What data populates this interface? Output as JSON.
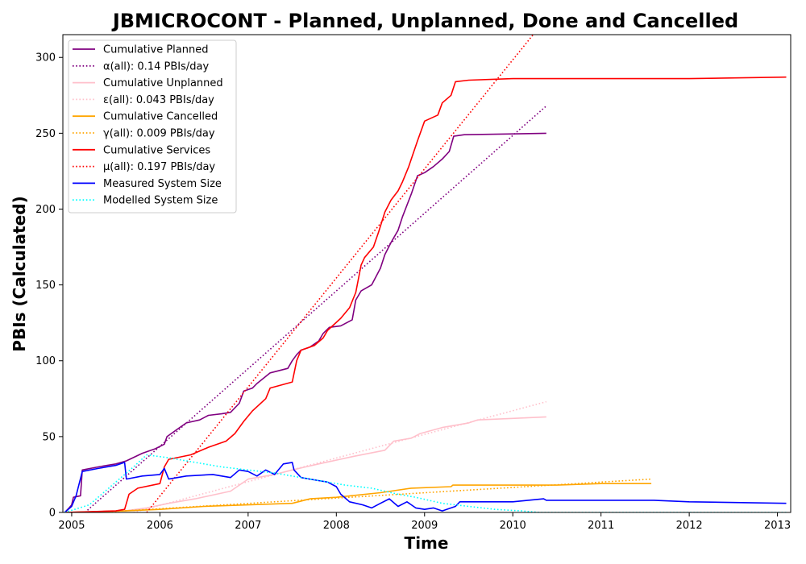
{
  "chart_data": {
    "type": "line",
    "title": "JBMICROCONT - Planned, Unplanned, Done  and Cancelled",
    "xlabel": "Time",
    "ylabel": "PBIs (Calculated)",
    "xlim": [
      2004.9,
      2013.15
    ],
    "ylim": [
      0,
      315
    ],
    "x_ticks": [
      2005,
      2006,
      2007,
      2008,
      2009,
      2010,
      2011,
      2012,
      2013
    ],
    "y_ticks": [
      0,
      50,
      100,
      150,
      200,
      250,
      300
    ],
    "grid": false,
    "legend_position": "top-left",
    "series": [
      {
        "name": "Cumulative Planned",
        "color": "#800080",
        "style": "solid",
        "points": [
          [
            2004.92,
            0
          ],
          [
            2004.97,
            3
          ],
          [
            2005.0,
            5
          ],
          [
            2005.02,
            10
          ],
          [
            2005.1,
            11
          ],
          [
            2005.12,
            28
          ],
          [
            2005.3,
            30
          ],
          [
            2005.5,
            32
          ],
          [
            2005.62,
            34
          ],
          [
            2005.8,
            39
          ],
          [
            2005.95,
            42
          ],
          [
            2006.05,
            45
          ],
          [
            2006.08,
            50
          ],
          [
            2006.2,
            55
          ],
          [
            2006.3,
            59
          ],
          [
            2006.45,
            61
          ],
          [
            2006.55,
            64
          ],
          [
            2006.7,
            65
          ],
          [
            2006.8,
            66
          ],
          [
            2006.9,
            72
          ],
          [
            2006.95,
            80
          ],
          [
            2007.05,
            82
          ],
          [
            2007.1,
            85
          ],
          [
            2007.25,
            92
          ],
          [
            2007.45,
            95
          ],
          [
            2007.5,
            100
          ],
          [
            2007.55,
            104
          ],
          [
            2007.6,
            107
          ],
          [
            2007.7,
            109
          ],
          [
            2007.8,
            113
          ],
          [
            2007.85,
            118
          ],
          [
            2007.92,
            122
          ],
          [
            2008.05,
            123
          ],
          [
            2008.18,
            127
          ],
          [
            2008.22,
            140
          ],
          [
            2008.28,
            146
          ],
          [
            2008.4,
            150
          ],
          [
            2008.5,
            161
          ],
          [
            2008.55,
            170
          ],
          [
            2008.62,
            178
          ],
          [
            2008.7,
            186
          ],
          [
            2008.75,
            195
          ],
          [
            2008.85,
            210
          ],
          [
            2008.92,
            222
          ],
          [
            2009.0,
            224
          ],
          [
            2009.1,
            228
          ],
          [
            2009.2,
            233
          ],
          [
            2009.28,
            238
          ],
          [
            2009.33,
            248
          ],
          [
            2009.45,
            249
          ],
          [
            2010.38,
            250
          ]
        ]
      },
      {
        "name": "α(all): 0.14 PBIs/day",
        "color": "#800080",
        "style": "dotted",
        "points": [
          [
            2005.15,
            0
          ],
          [
            2010.38,
            268
          ]
        ]
      },
      {
        "name": "Cumulative Unplanned",
        "color": "#ffc0cb",
        "style": "solid",
        "points": [
          [
            2004.92,
            0
          ],
          [
            2005.6,
            1
          ],
          [
            2005.85,
            3
          ],
          [
            2006.1,
            6
          ],
          [
            2006.4,
            9
          ],
          [
            2006.8,
            14
          ],
          [
            2007.0,
            22
          ],
          [
            2007.3,
            25
          ],
          [
            2007.5,
            28
          ],
          [
            2007.8,
            32
          ],
          [
            2008.2,
            37
          ],
          [
            2008.55,
            41
          ],
          [
            2008.65,
            47
          ],
          [
            2008.85,
            49
          ],
          [
            2008.95,
            52
          ],
          [
            2009.2,
            56
          ],
          [
            2009.5,
            59
          ],
          [
            2009.6,
            61
          ],
          [
            2010.0,
            62
          ],
          [
            2010.38,
            63
          ]
        ]
      },
      {
        "name": "ε(all): 0.043 PBIs/day",
        "color": "#ffc0cb",
        "style": "dotted",
        "points": [
          [
            2005.7,
            0
          ],
          [
            2010.38,
            73
          ]
        ]
      },
      {
        "name": "Cumulative Cancelled",
        "color": "#ffa500",
        "style": "solid",
        "points": [
          [
            2004.92,
            0
          ],
          [
            2005.6,
            1
          ],
          [
            2006.0,
            2
          ],
          [
            2006.5,
            4
          ],
          [
            2007.0,
            5
          ],
          [
            2007.5,
            6
          ],
          [
            2007.7,
            9
          ],
          [
            2008.0,
            10
          ],
          [
            2008.5,
            13
          ],
          [
            2008.85,
            16
          ],
          [
            2009.3,
            17
          ],
          [
            2009.32,
            18
          ],
          [
            2010.0,
            18
          ],
          [
            2010.5,
            18
          ],
          [
            2011.0,
            19
          ],
          [
            2011.57,
            19
          ]
        ]
      },
      {
        "name": "γ(all): 0.009 PBIs/day",
        "color": "#ffa500",
        "style": "dotted",
        "points": [
          [
            2005.3,
            0
          ],
          [
            2011.57,
            22
          ]
        ]
      },
      {
        "name": "Cumulative Services",
        "color": "#ff0000",
        "style": "solid",
        "points": [
          [
            2004.92,
            0
          ],
          [
            2005.5,
            1
          ],
          [
            2005.6,
            2
          ],
          [
            2005.65,
            12
          ],
          [
            2005.75,
            16
          ],
          [
            2006.0,
            19
          ],
          [
            2006.05,
            30
          ],
          [
            2006.1,
            35
          ],
          [
            2006.35,
            38
          ],
          [
            2006.55,
            43
          ],
          [
            2006.75,
            47
          ],
          [
            2006.85,
            52
          ],
          [
            2006.95,
            60
          ],
          [
            2007.05,
            67
          ],
          [
            2007.2,
            75
          ],
          [
            2007.25,
            82
          ],
          [
            2007.5,
            86
          ],
          [
            2007.55,
            100
          ],
          [
            2007.6,
            107
          ],
          [
            2007.75,
            110
          ],
          [
            2007.85,
            115
          ],
          [
            2007.9,
            120
          ],
          [
            2008.05,
            128
          ],
          [
            2008.15,
            135
          ],
          [
            2008.22,
            145
          ],
          [
            2008.28,
            163
          ],
          [
            2008.32,
            168
          ],
          [
            2008.42,
            175
          ],
          [
            2008.48,
            185
          ],
          [
            2008.55,
            198
          ],
          [
            2008.62,
            206
          ],
          [
            2008.7,
            212
          ],
          [
            2008.75,
            218
          ],
          [
            2008.82,
            228
          ],
          [
            2008.92,
            245
          ],
          [
            2009.0,
            258
          ],
          [
            2009.15,
            262
          ],
          [
            2009.2,
            270
          ],
          [
            2009.3,
            275
          ],
          [
            2009.35,
            284
          ],
          [
            2009.5,
            285
          ],
          [
            2010.0,
            286
          ],
          [
            2011.0,
            286
          ],
          [
            2012.0,
            286
          ],
          [
            2013.1,
            287
          ]
        ]
      },
      {
        "name": "μ(all): 0.197 PBIs/day",
        "color": "#ff0000",
        "style": "dotted",
        "points": [
          [
            2005.85,
            0
          ],
          [
            2010.3,
            320
          ]
        ]
      },
      {
        "name": "Measured System Size",
        "color": "#0000ff",
        "style": "solid",
        "points": [
          [
            2004.92,
            0
          ],
          [
            2005.0,
            4
          ],
          [
            2005.05,
            11
          ],
          [
            2005.12,
            27
          ],
          [
            2005.3,
            29
          ],
          [
            2005.5,
            31
          ],
          [
            2005.6,
            33
          ],
          [
            2005.62,
            22
          ],
          [
            2005.8,
            24
          ],
          [
            2006.0,
            25
          ],
          [
            2006.05,
            29
          ],
          [
            2006.1,
            22
          ],
          [
            2006.3,
            24
          ],
          [
            2006.6,
            25
          ],
          [
            2006.8,
            23
          ],
          [
            2006.9,
            28
          ],
          [
            2007.0,
            27
          ],
          [
            2007.1,
            24
          ],
          [
            2007.2,
            28
          ],
          [
            2007.3,
            25
          ],
          [
            2007.4,
            32
          ],
          [
            2007.5,
            33
          ],
          [
            2007.52,
            28
          ],
          [
            2007.6,
            23
          ],
          [
            2007.8,
            21
          ],
          [
            2007.9,
            20
          ],
          [
            2008.0,
            17
          ],
          [
            2008.05,
            12
          ],
          [
            2008.15,
            7
          ],
          [
            2008.3,
            5
          ],
          [
            2008.4,
            3
          ],
          [
            2008.5,
            6
          ],
          [
            2008.6,
            9
          ],
          [
            2008.7,
            4
          ],
          [
            2008.8,
            7
          ],
          [
            2008.9,
            3
          ],
          [
            2009.0,
            2
          ],
          [
            2009.1,
            3
          ],
          [
            2009.2,
            1
          ],
          [
            2009.3,
            3
          ],
          [
            2009.35,
            4
          ],
          [
            2009.4,
            7
          ],
          [
            2010.0,
            7
          ],
          [
            2010.35,
            9
          ],
          [
            2010.38,
            8
          ],
          [
            2011.0,
            8
          ],
          [
            2011.6,
            8
          ],
          [
            2012.0,
            7
          ],
          [
            2013.1,
            6
          ]
        ]
      },
      {
        "name": "Modelled System Size",
        "color": "#00ffff",
        "style": "dotted",
        "points": [
          [
            2004.92,
            0
          ],
          [
            2005.2,
            5
          ],
          [
            2005.5,
            20
          ],
          [
            2005.7,
            30
          ],
          [
            2005.85,
            38
          ],
          [
            2006.1,
            36
          ],
          [
            2006.4,
            33
          ],
          [
            2006.7,
            30
          ],
          [
            2007.0,
            28
          ],
          [
            2007.3,
            26
          ],
          [
            2007.6,
            23
          ],
          [
            2007.9,
            20
          ],
          [
            2008.1,
            18
          ],
          [
            2008.4,
            16
          ],
          [
            2008.7,
            12
          ],
          [
            2008.9,
            10
          ],
          [
            2009.2,
            6
          ],
          [
            2009.5,
            4
          ],
          [
            2009.8,
            2
          ],
          [
            2010.1,
            1
          ],
          [
            2010.3,
            0
          ],
          [
            2011.0,
            0
          ],
          [
            2012.0,
            0
          ],
          [
            2013.1,
            0
          ]
        ]
      }
    ]
  }
}
